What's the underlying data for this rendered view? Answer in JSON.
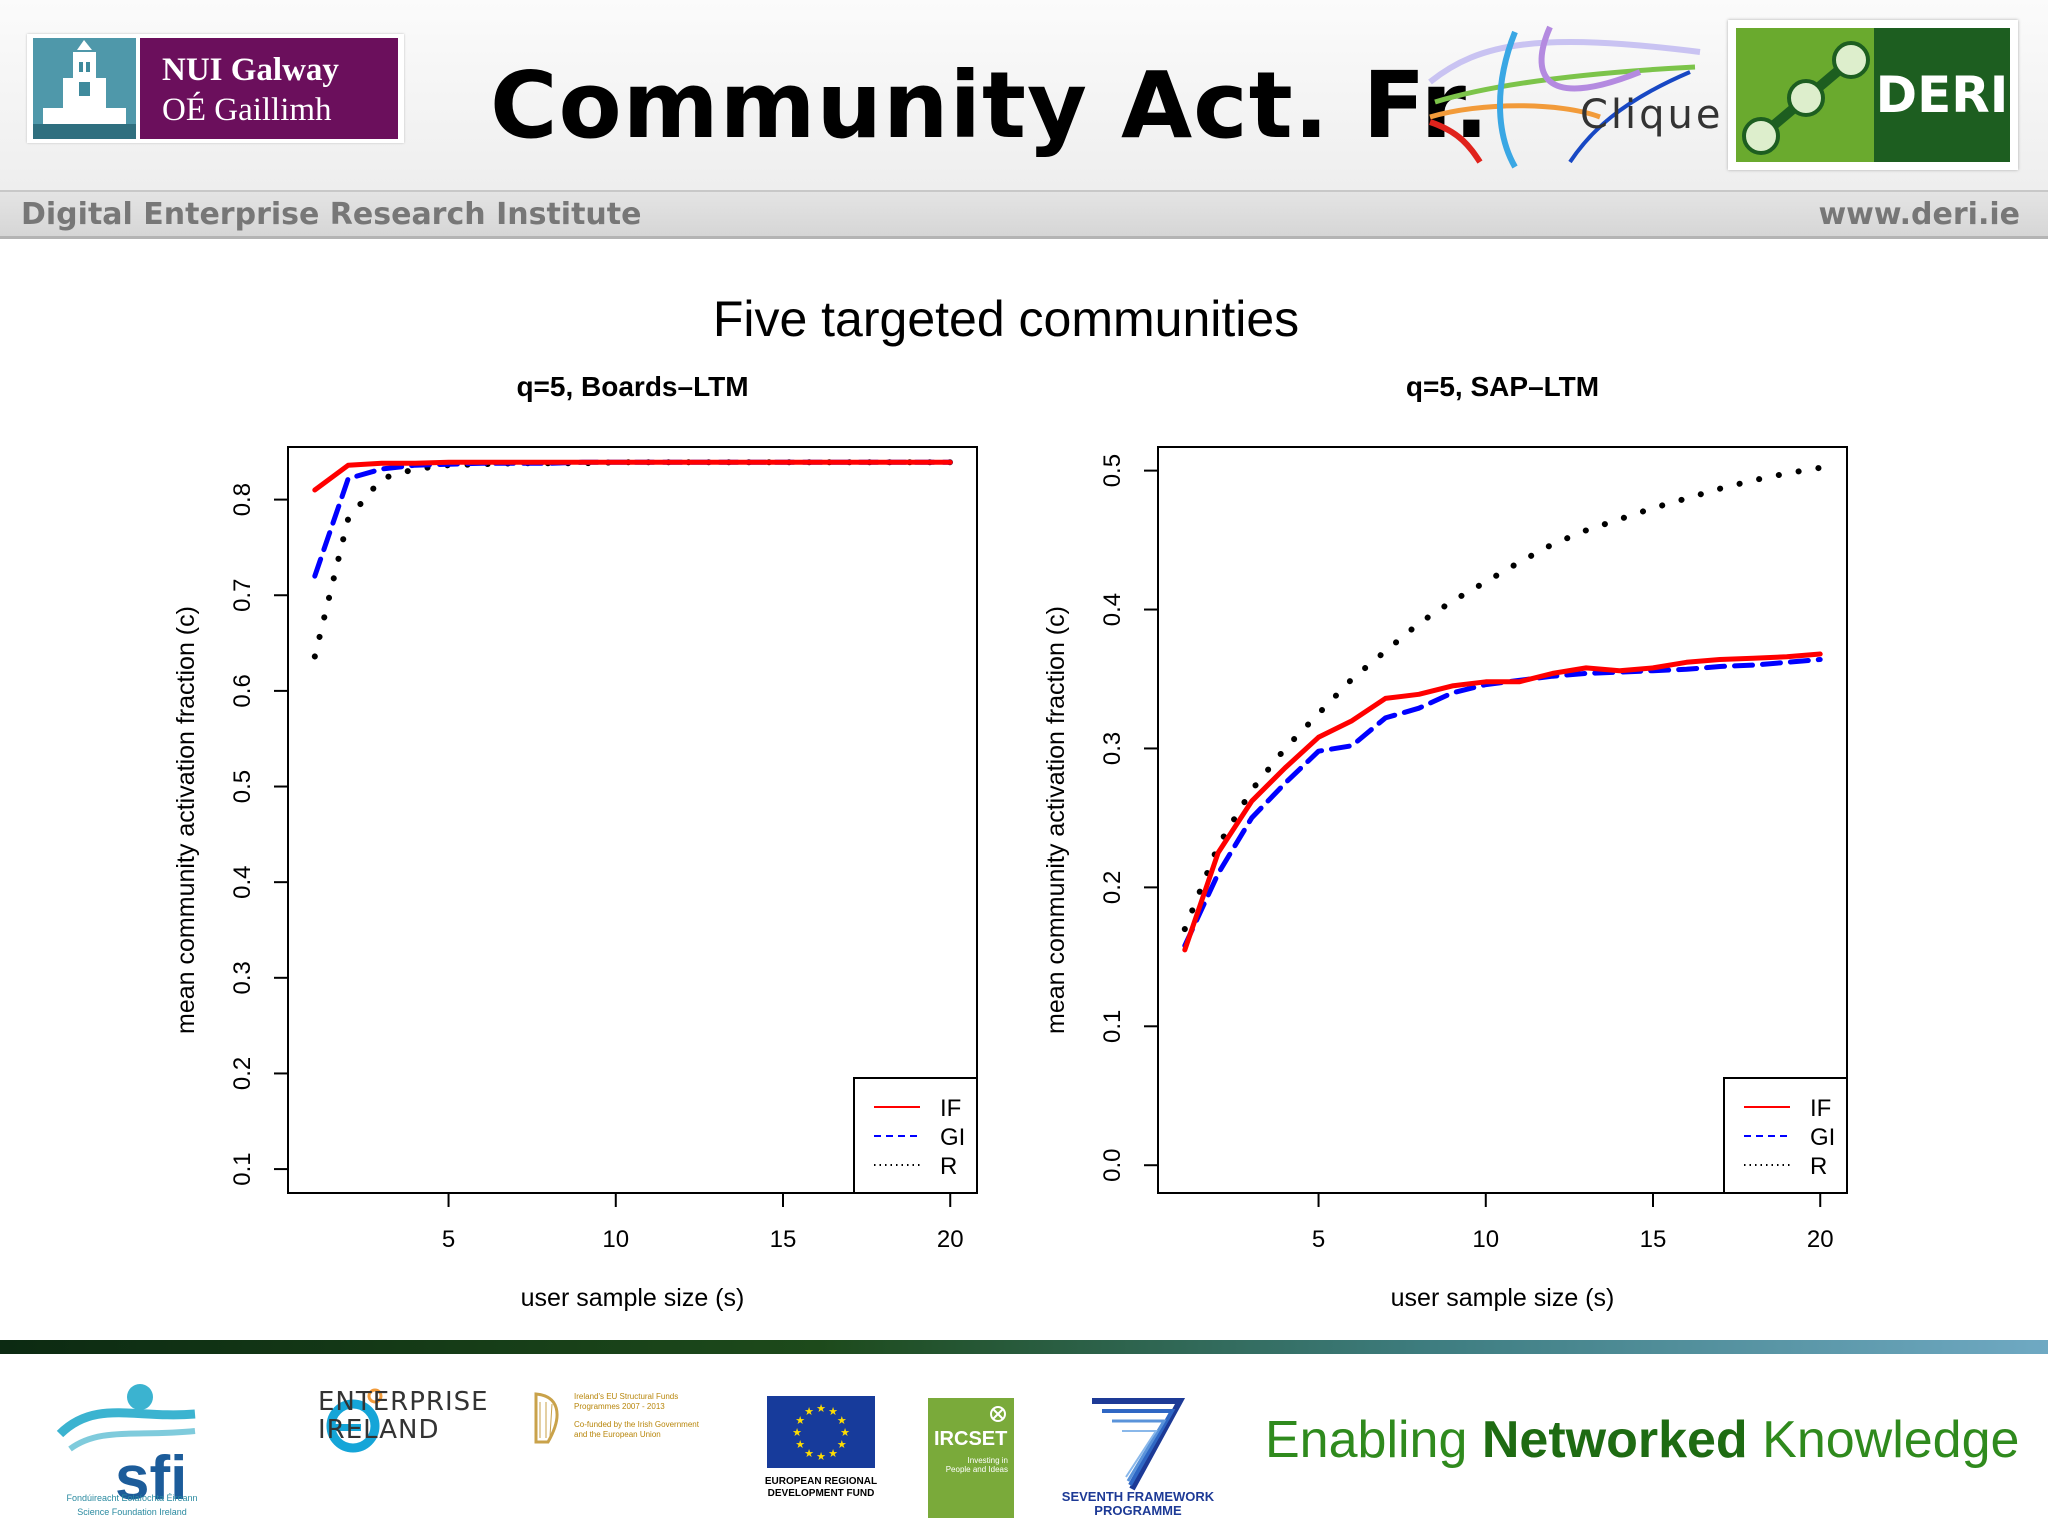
{
  "header": {
    "title": "Community Act. Fr.",
    "institute": "Digital Enterprise Research Institute",
    "website": "www.deri.ie",
    "nui_line1": "NUI Galway",
    "nui_line2": "OÉ Gaillimh",
    "clique_label": "Clique",
    "deri_label": "DERI"
  },
  "figure_title": "Five targeted communities",
  "footer": {
    "enterprise_line1": "ENTERPRISE",
    "enterprise_line2": "IRELAND",
    "sfi_label": "sfi",
    "sfi_sub1": "Fondúireacht Eolaíochta Éireann",
    "sfi_sub2": "Science Foundation Ireland",
    "structfund_text1": "Ireland's EU Structural Funds",
    "structfund_text2": "Programmes 2007 - 2013",
    "structfund_text3": "Co-funded by the Irish Government",
    "structfund_text4": "and the European Union",
    "eu_caption1": "EUROPEAN REGIONAL",
    "eu_caption2": "DEVELOPMENT FUND",
    "ircset_label": "IRCSET",
    "ircset_sub1": "Investing in",
    "ircset_sub2": "People and Ideas",
    "fp7_caption1": "SEVENTH FRAMEWORK",
    "fp7_caption2": "PROGRAMME",
    "tagline_pre": "Enabling ",
    "tagline_bold": "Networked",
    "tagline_post": " Knowledge"
  },
  "chart_data": [
    {
      "type": "line",
      "title": "q=5, Boards–LTM",
      "xlabel": "user sample size (s)",
      "ylabel": "mean community activation fraction (c)",
      "xlim": [
        0.2,
        20.8
      ],
      "ylim": [
        0.075,
        0.855
      ],
      "xticks": [
        5,
        10,
        15,
        20
      ],
      "yticks": [
        0.1,
        0.2,
        0.3,
        0.4,
        0.5,
        0.6,
        0.7,
        0.8
      ],
      "grid": false,
      "legend": "bottom-right",
      "x": [
        1,
        2,
        3,
        4,
        5,
        6,
        7,
        8,
        9,
        10,
        11,
        12,
        13,
        14,
        15,
        16,
        17,
        18,
        19,
        20
      ],
      "series": [
        {
          "name": "IF",
          "color": "#ff0000",
          "style": "solid",
          "values": [
            0.81,
            0.836,
            0.838,
            0.838,
            0.839,
            0.839,
            0.839,
            0.839,
            0.839,
            0.839,
            0.839,
            0.839,
            0.839,
            0.839,
            0.839,
            0.839,
            0.839,
            0.839,
            0.839,
            0.839
          ]
        },
        {
          "name": "GI",
          "color": "#0000ff",
          "style": "dashed",
          "values": [
            0.72,
            0.822,
            0.832,
            0.836,
            0.837,
            0.838,
            0.838,
            0.838,
            0.839,
            0.839,
            0.839,
            0.839,
            0.839,
            0.839,
            0.839,
            0.839,
            0.839,
            0.839,
            0.839,
            0.839
          ]
        },
        {
          "name": "R",
          "color": "#000000",
          "style": "dotted",
          "values": [
            0.636,
            0.78,
            0.822,
            0.832,
            0.836,
            0.837,
            0.838,
            0.838,
            0.838,
            0.839,
            0.839,
            0.839,
            0.839,
            0.839,
            0.839,
            0.839,
            0.839,
            0.839,
            0.839,
            0.839
          ]
        }
      ]
    },
    {
      "type": "line",
      "title": "q=5, SAP–LTM",
      "xlabel": "user sample size (s)",
      "ylabel": "mean community activation fraction (c)",
      "xlim": [
        0.2,
        20.8
      ],
      "ylim": [
        -0.02,
        0.517
      ],
      "xticks": [
        5,
        10,
        15,
        20
      ],
      "yticks": [
        0.0,
        0.1,
        0.2,
        0.3,
        0.4,
        0.5
      ],
      "grid": false,
      "legend": "bottom-right",
      "x": [
        1,
        2,
        3,
        4,
        5,
        6,
        7,
        8,
        9,
        10,
        11,
        12,
        13,
        14,
        15,
        16,
        17,
        18,
        19,
        20
      ],
      "series": [
        {
          "name": "IF",
          "color": "#ff0000",
          "style": "solid",
          "values": [
            0.155,
            0.225,
            0.262,
            0.286,
            0.308,
            0.32,
            0.336,
            0.339,
            0.345,
            0.348,
            0.348,
            0.354,
            0.358,
            0.356,
            0.358,
            0.362,
            0.364,
            0.365,
            0.366,
            0.368
          ]
        },
        {
          "name": "GI",
          "color": "#0000ff",
          "style": "dashed",
          "values": [
            0.158,
            0.21,
            0.25,
            0.275,
            0.298,
            0.302,
            0.322,
            0.329,
            0.34,
            0.346,
            0.349,
            0.352,
            0.354,
            0.355,
            0.356,
            0.357,
            0.359,
            0.36,
            0.362,
            0.364
          ]
        },
        {
          "name": "R",
          "color": "#000000",
          "style": "dotted",
          "values": [
            0.17,
            0.23,
            0.27,
            0.3,
            0.325,
            0.35,
            0.37,
            0.39,
            0.406,
            0.42,
            0.434,
            0.447,
            0.457,
            0.465,
            0.473,
            0.48,
            0.487,
            0.493,
            0.498,
            0.502
          ]
        }
      ]
    }
  ]
}
